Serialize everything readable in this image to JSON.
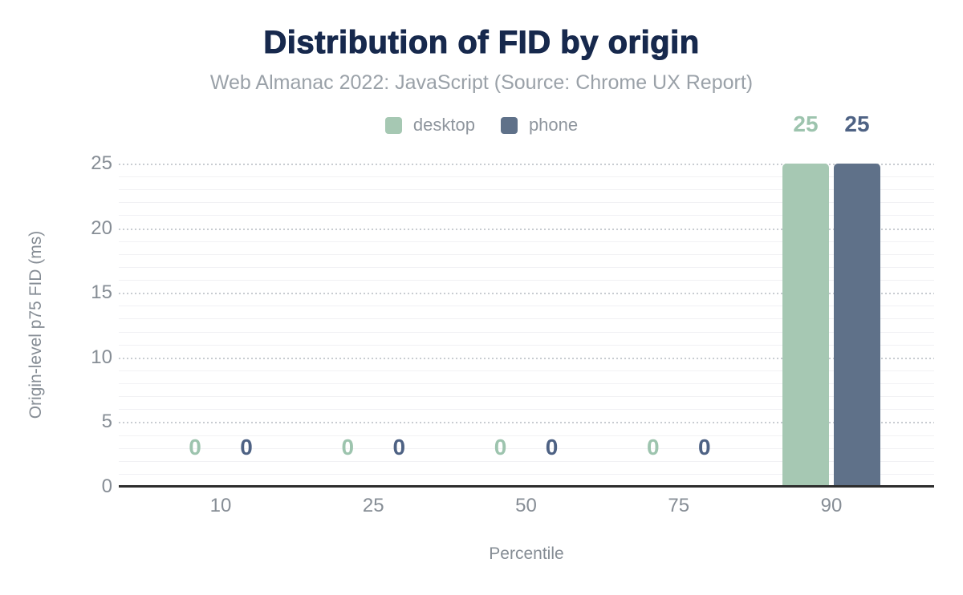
{
  "chart_data": {
    "type": "bar",
    "title": "Distribution of FID by origin",
    "subtitle": "Web Almanac 2022: JavaScript (Source: Chrome UX Report)",
    "xlabel": "Percentile",
    "ylabel": "Origin-level p75 FID (ms)",
    "categories": [
      "10",
      "25",
      "50",
      "75",
      "90"
    ],
    "series": [
      {
        "name": "desktop",
        "color": "#a6c8b3",
        "label_color": "#9dc4ae",
        "values": [
          0,
          0,
          0,
          0,
          25
        ]
      },
      {
        "name": "phone",
        "color": "#5f7189",
        "label_color": "#4e6284",
        "values": [
          0,
          0,
          0,
          0,
          25
        ]
      }
    ],
    "y_ticks": [
      0,
      5,
      10,
      15,
      20,
      25
    ],
    "ylim": [
      0,
      25
    ],
    "legend_position": "top",
    "grid": "horizontal dotted major lines every 5, faint minor lines every 1",
    "colors": {
      "title": "#17294d",
      "subtitle": "#9aa1a8",
      "legend_text": "#8f969e",
      "tick_text": "#868d95",
      "axis_line": "#2d2d2d",
      "minor_grid": "#f1f1f4",
      "major_grid": "#c8ccd1"
    }
  }
}
